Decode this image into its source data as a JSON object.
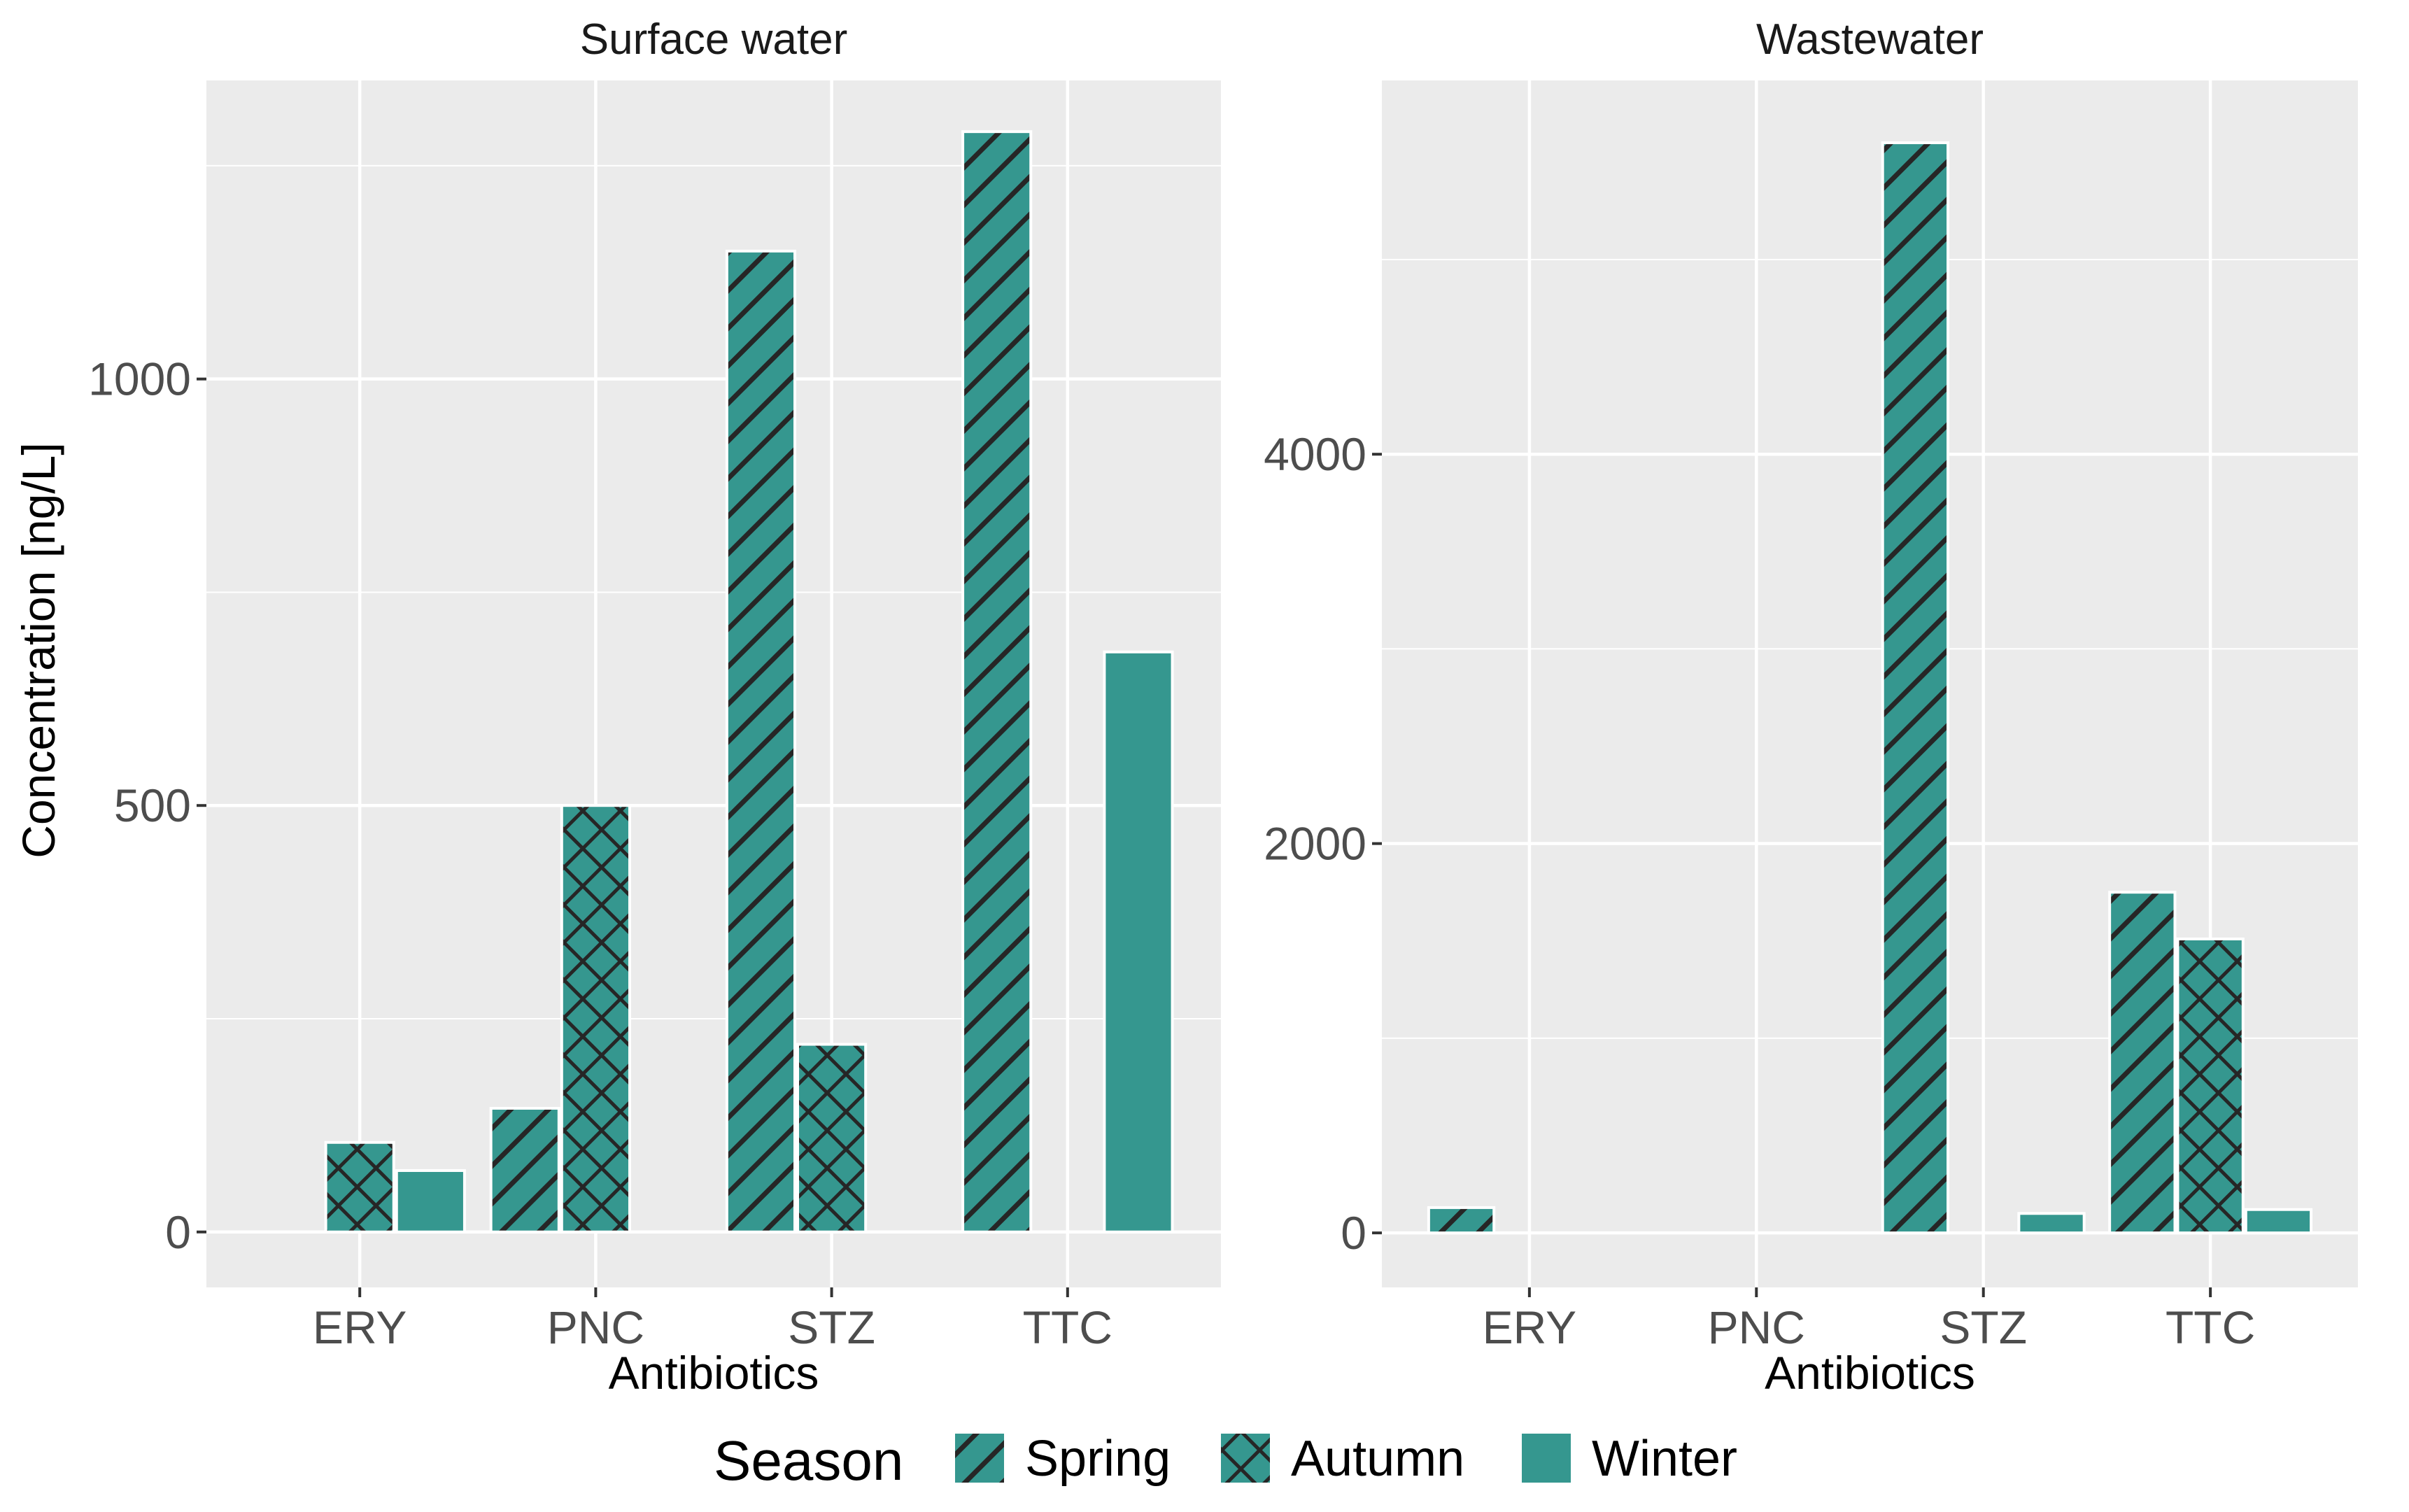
{
  "chart_data": [
    {
      "type": "bar",
      "title": "Surface water",
      "xlabel": "Antibiotics",
      "ylabel": "Concentration [ng/L]",
      "categories": [
        "ERY",
        "PNC",
        "STZ",
        "TTC"
      ],
      "ylim": [
        -65,
        1350
      ],
      "yticks": [
        0,
        500,
        1000
      ],
      "yminor": [
        250,
        750,
        1250
      ],
      "series": [
        {
          "name": "Spring",
          "pattern": "stripes",
          "values": [
            null,
            145,
            1150,
            1290
          ]
        },
        {
          "name": "Autumn",
          "pattern": "crosshatch",
          "values": [
            105,
            500,
            220,
            null
          ]
        },
        {
          "name": "Winter",
          "pattern": "none",
          "values": [
            72,
            null,
            null,
            680
          ]
        }
      ]
    },
    {
      "type": "bar",
      "title": "Wastewater",
      "xlabel": "Antibiotics",
      "ylabel": "",
      "categories": [
        "ERY",
        "PNC",
        "STZ",
        "TTC"
      ],
      "ylim": [
        -280,
        5920
      ],
      "yticks": [
        0,
        2000,
        4000
      ],
      "yminor": [
        1000,
        3000,
        5000
      ],
      "series": [
        {
          "name": "Spring",
          "pattern": "stripes",
          "values": [
            130,
            null,
            5600,
            1750
          ]
        },
        {
          "name": "Autumn",
          "pattern": "crosshatch",
          "values": [
            null,
            null,
            null,
            1510
          ]
        },
        {
          "name": "Winter",
          "pattern": "none",
          "values": [
            null,
            null,
            100,
            120
          ]
        }
      ]
    }
  ],
  "legend": {
    "title": "Season",
    "items": [
      "Spring",
      "Autumn",
      "Winter"
    ]
  },
  "colors": {
    "fill": "#35978f",
    "pattern": "#262626",
    "panel_bg": "#ebebeb",
    "grid": "#ffffff"
  }
}
